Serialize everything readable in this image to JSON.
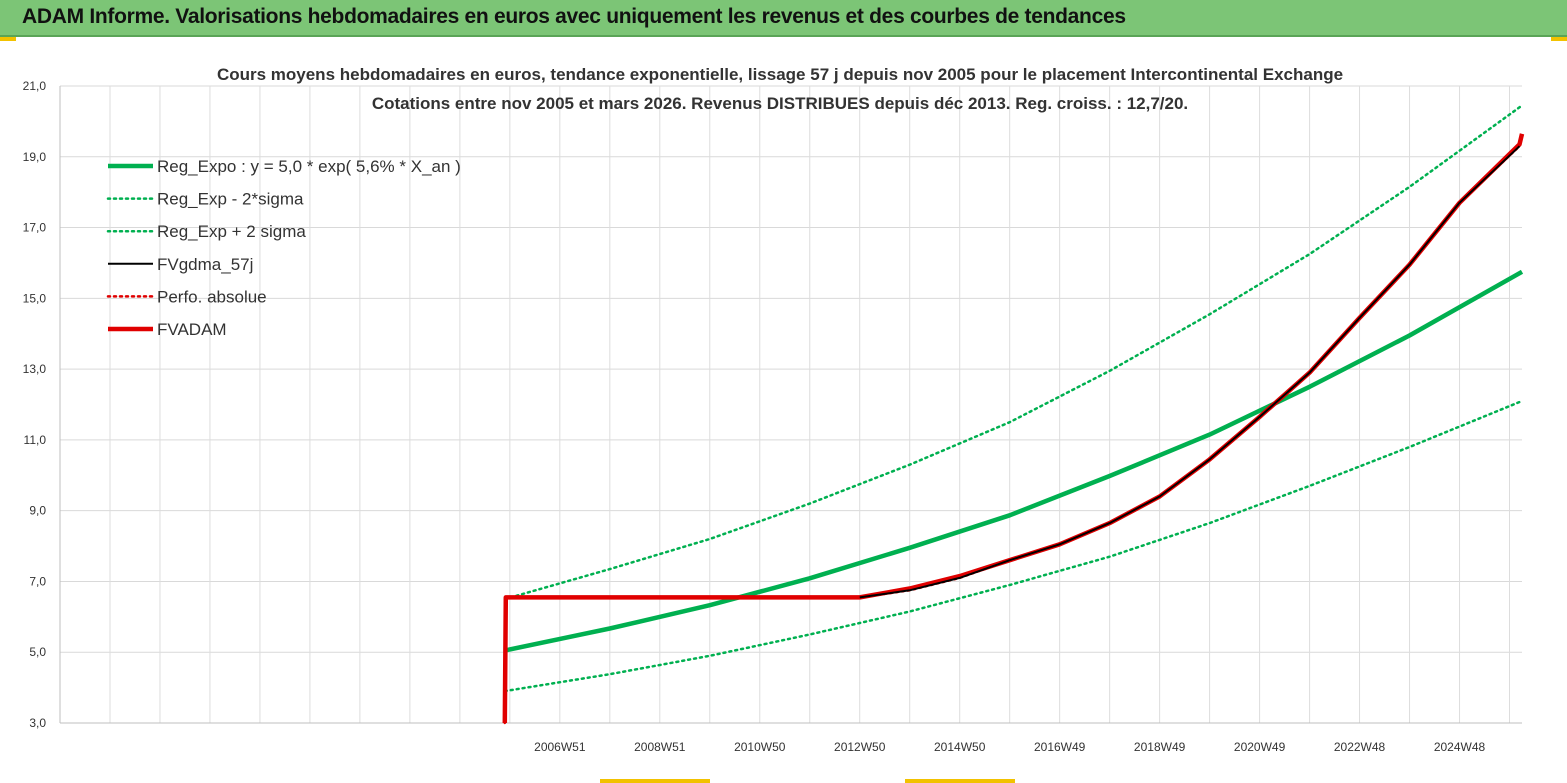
{
  "header": {
    "title": "ADAM Informe. Valorisations hebdomadaires en euros avec uniquement les revenus et des courbes de tendances"
  },
  "colors": {
    "header_bg": "#7cc576",
    "green": "#00b050",
    "red": "#e00000",
    "black": "#000000",
    "accent": "#f2c200"
  },
  "chart_data": {
    "type": "line",
    "title": "Cours moyens hebdomadaires en euros, tendance exponentielle, lissage 57 j depuis nov 2005 pour le placement Intercontinental Exchange",
    "subtitle": "Cotations entre nov 2005 et mars 2026. Revenus DISTRIBUES depuis déc 2013. Reg. croiss. : 12,7/20.",
    "ylim": [
      3.0,
      21.0
    ],
    "y_ticks": [
      "3,0",
      "5,0",
      "7,0",
      "9,0",
      "11,0",
      "13,0",
      "15,0",
      "17,0",
      "19,0",
      "21,0"
    ],
    "x_range": [
      1997.0,
      2026.25
    ],
    "x_ticks": [
      {
        "x": 2007.0,
        "label": "2006W51"
      },
      {
        "x": 2009.0,
        "label": "2008W51"
      },
      {
        "x": 2011.0,
        "label": "2010W50"
      },
      {
        "x": 2013.0,
        "label": "2012W50"
      },
      {
        "x": 2015.0,
        "label": "2014W50"
      },
      {
        "x": 2017.0,
        "label": "2016W49"
      },
      {
        "x": 2019.0,
        "label": "2018W49"
      },
      {
        "x": 2021.0,
        "label": "2020W49"
      },
      {
        "x": 2023.0,
        "label": "2022W48"
      },
      {
        "x": 2025.0,
        "label": "2024W48"
      }
    ],
    "grid": true,
    "legend_position": "top-left",
    "series": [
      {
        "name": "Reg_Expo : y = 5,0 * exp( 5,6% *  X_an )",
        "color": "#00b050",
        "style": "solid-thick",
        "x": [
          2005.9,
          2008.0,
          2010.0,
          2012.0,
          2014.0,
          2016.0,
          2018.0,
          2020.0,
          2022.0,
          2024.0,
          2026.25
        ],
        "y": [
          5.05,
          5.67,
          6.33,
          7.09,
          7.95,
          8.87,
          9.98,
          11.15,
          12.5,
          13.95,
          15.75
        ]
      },
      {
        "name": "Reg_Exp - 2*sigma",
        "color": "#00b050",
        "style": "dotted",
        "x": [
          2005.9,
          2008.0,
          2010.0,
          2012.0,
          2014.0,
          2016.0,
          2018.0,
          2020.0,
          2022.0,
          2024.0,
          2026.25
        ],
        "y": [
          3.9,
          4.38,
          4.9,
          5.5,
          6.15,
          6.9,
          7.7,
          8.65,
          9.7,
          10.8,
          12.1
        ]
      },
      {
        "name": "Reg_Exp + 2 sigma",
        "color": "#00b050",
        "style": "dotted",
        "x": [
          2005.9,
          2008.0,
          2010.0,
          2012.0,
          2014.0,
          2016.0,
          2018.0,
          2020.0,
          2022.0,
          2024.0,
          2026.25
        ],
        "y": [
          6.5,
          7.35,
          8.2,
          9.2,
          10.3,
          11.5,
          12.95,
          14.55,
          16.25,
          18.15,
          20.45
        ]
      },
      {
        "name": "FVgdma_57j",
        "color": "#000000",
        "style": "solid",
        "x": [
          2013.0,
          2014.0,
          2015.0,
          2016.0,
          2017.0,
          2018.0,
          2019.0,
          2020.0,
          2021.0,
          2022.0,
          2023.0,
          2024.0,
          2025.0,
          2026.2
        ],
        "y": [
          6.55,
          6.75,
          7.1,
          7.6,
          8.05,
          8.65,
          9.4,
          10.45,
          11.65,
          12.9,
          14.45,
          15.95,
          17.7,
          19.3
        ]
      },
      {
        "name": "Perfo. absolue",
        "color": "#e00000",
        "style": "dotted",
        "x": [
          2005.9,
          2005.92,
          2013.0,
          2014.0,
          2015.0,
          2016.0,
          2017.0,
          2018.0,
          2019.0,
          2020.0,
          2021.0,
          2022.0,
          2023.0,
          2024.0,
          2025.0,
          2026.2
        ],
        "y": [
          3.0,
          6.55,
          6.55,
          6.75,
          7.1,
          7.6,
          8.05,
          8.65,
          9.4,
          10.45,
          11.65,
          12.9,
          14.45,
          15.95,
          17.7,
          19.3
        ]
      },
      {
        "name": "FVADAM",
        "color": "#e00000",
        "style": "solid-thick",
        "x": [
          2005.9,
          2005.92,
          2013.0,
          2014.0,
          2015.0,
          2016.0,
          2017.0,
          2018.0,
          2019.0,
          2020.0,
          2021.0,
          2022.0,
          2023.0,
          2024.0,
          2025.0,
          2026.2,
          2026.25
        ],
        "y": [
          3.0,
          6.55,
          6.55,
          6.8,
          7.15,
          7.6,
          8.05,
          8.65,
          9.4,
          10.45,
          11.65,
          12.9,
          14.45,
          15.95,
          17.7,
          19.35,
          19.65
        ]
      }
    ]
  }
}
